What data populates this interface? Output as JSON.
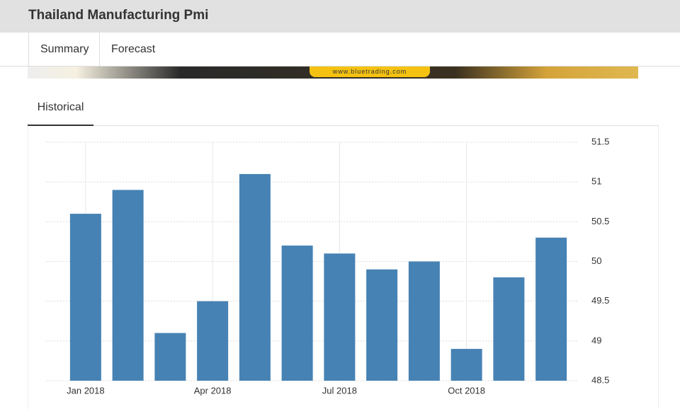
{
  "header": {
    "title": "Thailand Manufacturing Pmi"
  },
  "tabs": [
    "Summary",
    "Forecast"
  ],
  "banner": {
    "text": "www.bluetrading.com"
  },
  "section_tab": "Historical",
  "chart_data": {
    "type": "bar",
    "categories": [
      "Jan 2018",
      null,
      null,
      "Apr 2018",
      null,
      null,
      "Jul 2018",
      null,
      null,
      "Oct 2018",
      null,
      null
    ],
    "values": [
      50.6,
      50.9,
      49.1,
      49.5,
      51.1,
      50.2,
      50.1,
      49.9,
      50.0,
      48.9,
      49.8,
      50.3
    ],
    "color": "#4682b4",
    "ylim": [
      48.5,
      51.5
    ],
    "yticks": [
      48.5,
      49,
      49.5,
      50,
      50.5,
      51,
      51.5
    ],
    "grid": true
  }
}
